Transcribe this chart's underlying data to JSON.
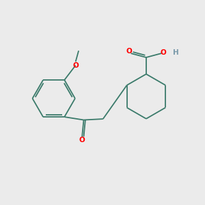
{
  "background_color": "#EBEBEB",
  "bond_color": "#3a7a6a",
  "oxygen_color": "#FF0000",
  "hydrogen_color": "#7a9aaa",
  "line_width": 1.3,
  "figsize": [
    3.0,
    3.0
  ],
  "dpi": 100,
  "xlim": [
    0,
    10
  ],
  "ylim": [
    0,
    10
  ]
}
